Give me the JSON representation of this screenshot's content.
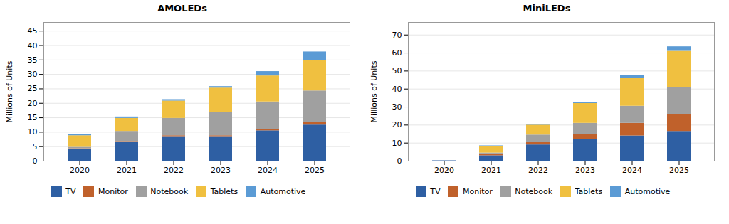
{
  "chart_data": [
    {
      "type": "bar",
      "stacked": true,
      "title": "AMOLEDs",
      "ylabel": "Millions of Units",
      "categories": [
        "2020",
        "2021",
        "2022",
        "2023",
        "2024",
        "2025"
      ],
      "series": [
        {
          "name": "TV",
          "color": "#2e5fa3",
          "values": [
            4.0,
            6.5,
            8.5,
            8.5,
            10.5,
            12.5
          ]
        },
        {
          "name": "Monitor",
          "color": "#c0612b",
          "values": [
            0.3,
            0.3,
            0.3,
            0.3,
            0.5,
            0.8
          ]
        },
        {
          "name": "Notebook",
          "color": "#a0a0a0",
          "values": [
            0.5,
            3.5,
            6.0,
            8.0,
            9.5,
            11.0
          ]
        },
        {
          "name": "Tablets",
          "color": "#f0c040",
          "values": [
            4.0,
            4.5,
            6.0,
            8.5,
            9.0,
            10.5
          ]
        },
        {
          "name": "Automotive",
          "color": "#5b9bd5",
          "values": [
            0.5,
            0.5,
            0.5,
            0.5,
            1.5,
            3.0
          ]
        }
      ],
      "ylim": [
        0,
        48
      ],
      "yticks": [
        0,
        5,
        10,
        15,
        20,
        25,
        30,
        35,
        40,
        45
      ],
      "grid": true,
      "legend": "bottom"
    },
    {
      "type": "bar",
      "stacked": true,
      "title": "MiniLEDs",
      "ylabel": "Millions of Units",
      "categories": [
        "2020",
        "2021",
        "2022",
        "2023",
        "2024",
        "2025"
      ],
      "series": [
        {
          "name": "TV",
          "color": "#2e5fa3",
          "values": [
            0.2,
            3.0,
            9.0,
            12.0,
            14.0,
            16.5
          ]
        },
        {
          "name": "Monitor",
          "color": "#c0612b",
          "values": [
            0.0,
            1.0,
            1.5,
            3.0,
            7.0,
            9.5
          ]
        },
        {
          "name": "Notebook",
          "color": "#a0a0a0",
          "values": [
            0.0,
            0.5,
            4.0,
            6.0,
            9.5,
            15.0
          ]
        },
        {
          "name": "Tablets",
          "color": "#f0c040",
          "values": [
            0.0,
            3.5,
            5.5,
            11.0,
            15.5,
            20.0
          ]
        },
        {
          "name": "Automotive",
          "color": "#5b9bd5",
          "values": [
            0.0,
            0.5,
            0.5,
            0.5,
            1.5,
            2.5
          ]
        }
      ],
      "ylim": [
        0,
        77
      ],
      "yticks": [
        0,
        10,
        20,
        30,
        40,
        50,
        60,
        70
      ],
      "grid": true,
      "legend": "bottom"
    }
  ]
}
